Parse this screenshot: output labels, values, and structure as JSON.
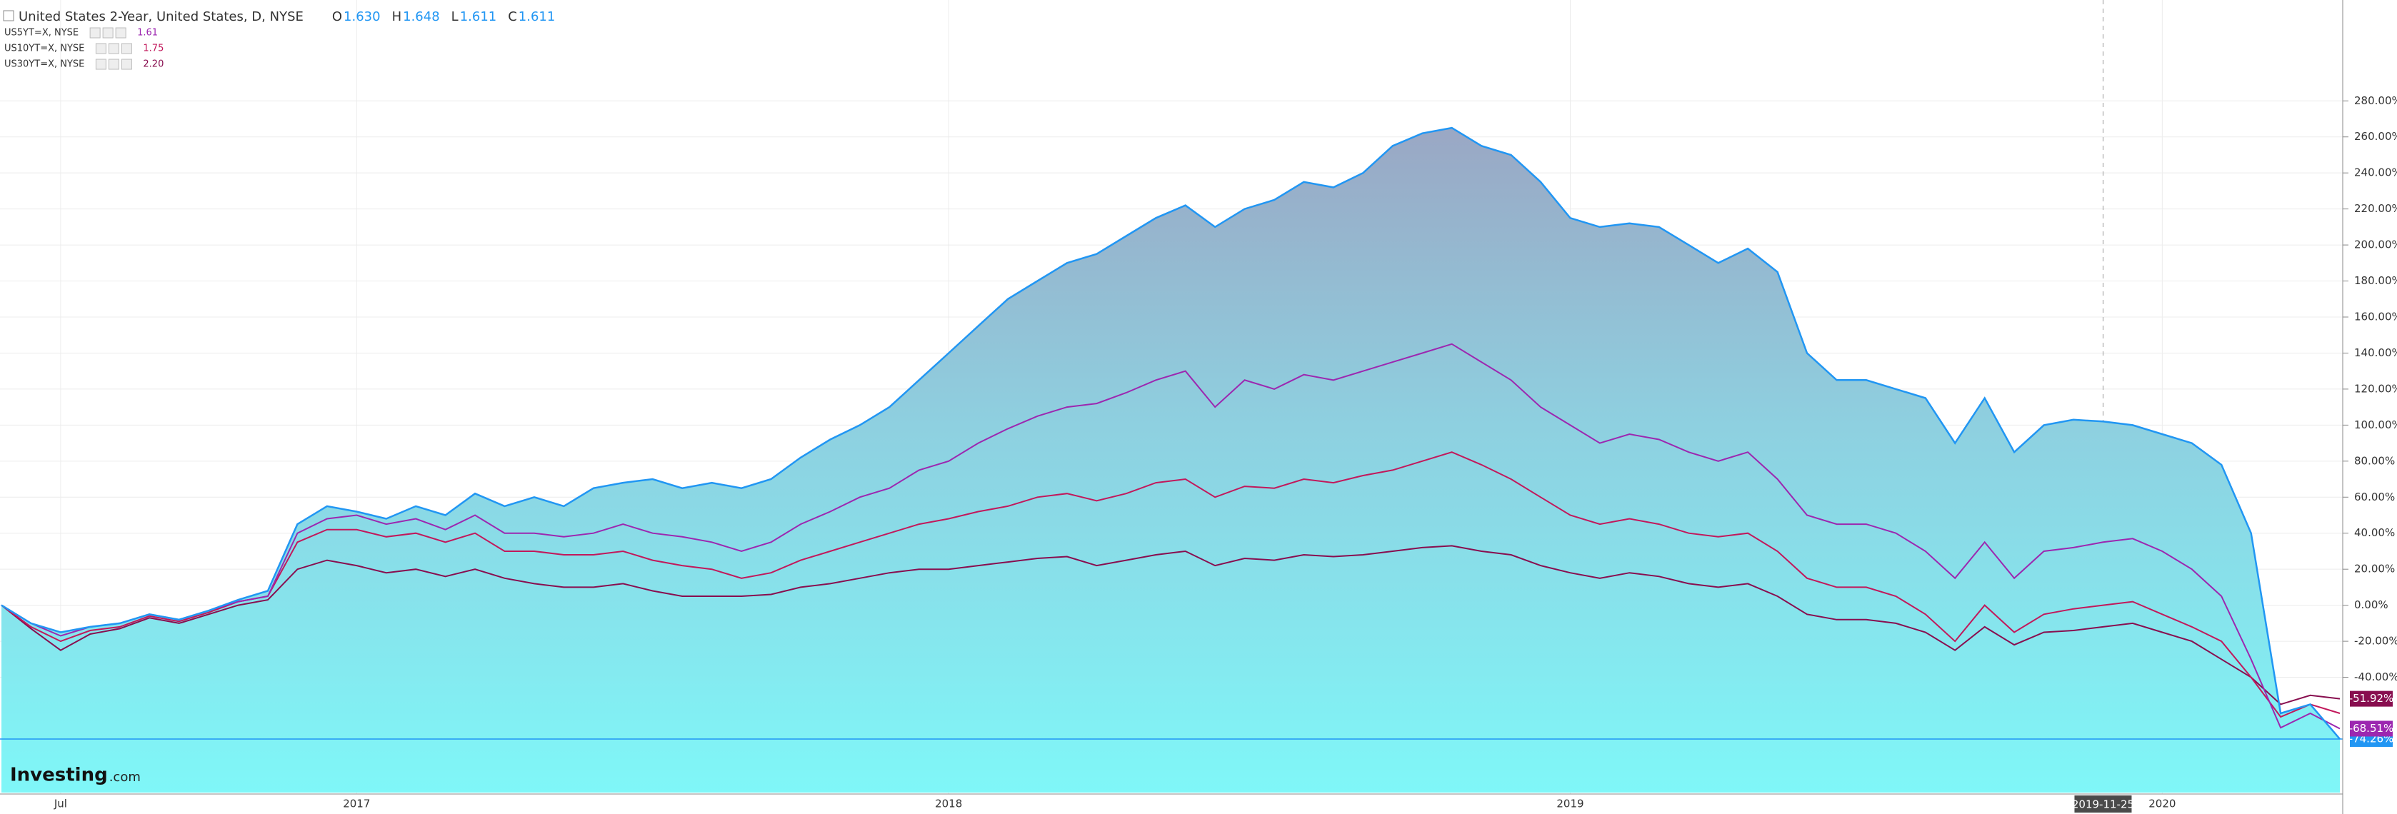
{
  "chart_data": {
    "type": "area-line",
    "title": "United States 2-Year, United States, D, NYSE",
    "ohlc": [
      {
        "label": "O",
        "value": "1.630"
      },
      {
        "label": "H",
        "value": "1.648"
      },
      {
        "label": "L",
        "value": "1.611"
      },
      {
        "label": "C",
        "value": "1.611"
      }
    ],
    "watermark": {
      "brand": "Investing",
      "suffix": ".com"
    },
    "categories": [
      null,
      null,
      "Jul",
      null,
      null,
      null,
      null,
      null,
      null,
      null,
      null,
      null,
      "2017",
      null,
      null,
      null,
      null,
      null,
      null,
      null,
      null,
      null,
      null,
      null,
      null,
      null,
      null,
      null,
      null,
      null,
      null,
      null,
      "2018",
      null,
      null,
      null,
      null,
      null,
      null,
      null,
      null,
      null,
      null,
      null,
      null,
      null,
      null,
      null,
      null,
      null,
      null,
      null,
      null,
      "2019",
      null,
      null,
      null,
      null,
      null,
      null,
      null,
      null,
      null,
      null,
      null,
      null,
      null,
      null,
      null,
      null,
      null,
      "2019-11-25",
      null,
      "2020",
      null,
      null,
      null,
      null,
      null,
      null
    ],
    "ylim": [
      -104,
      336
    ],
    "yticks": [
      {
        "value": -40,
        "label": "-40.00%"
      },
      {
        "value": -20,
        "label": "-20.00%"
      },
      {
        "value": 0,
        "label": "0.00%"
      },
      {
        "value": 20,
        "label": "20.00%"
      },
      {
        "value": 40,
        "label": "40.00%"
      },
      {
        "value": 60,
        "label": "60.00%"
      },
      {
        "value": 80,
        "label": "80.00%"
      },
      {
        "value": 100,
        "label": "100.00%"
      },
      {
        "value": 120,
        "label": "120.00%"
      },
      {
        "value": 140,
        "label": "140.00%"
      },
      {
        "value": 160,
        "label": "160.00%"
      },
      {
        "value": 180,
        "label": "180.00%"
      },
      {
        "value": 200,
        "label": "200.00%"
      },
      {
        "value": 220,
        "label": "220.00%"
      },
      {
        "value": 240,
        "label": "240.00%"
      },
      {
        "value": 260,
        "label": "260.00%"
      },
      {
        "value": 280,
        "label": "280.00%"
      }
    ],
    "grid": true,
    "series": [
      {
        "name": "United States 2-Year",
        "color": "#2196f3",
        "area": true,
        "end_label": "-74.26%",
        "values": [
          0,
          -10,
          -15,
          -12,
          -10,
          -5,
          -8,
          -3,
          3,
          8,
          45,
          55,
          52,
          48,
          55,
          50,
          62,
          55,
          60,
          55,
          65,
          68,
          70,
          65,
          68,
          65,
          70,
          82,
          92,
          100,
          110,
          125,
          140,
          155,
          170,
          180,
          190,
          195,
          205,
          215,
          222,
          210,
          220,
          225,
          235,
          232,
          240,
          255,
          262,
          265,
          255,
          250,
          235,
          215,
          210,
          212,
          210,
          200,
          190,
          198,
          185,
          140,
          125,
          125,
          120,
          115,
          90,
          115,
          85,
          100,
          103,
          102,
          100,
          95,
          90,
          78,
          40,
          -60,
          -55,
          -74.26
        ]
      },
      {
        "name": "US5YT=X, NYSE",
        "color": "#9c27b0",
        "legend_value": "1.61",
        "end_label": "-68.51%",
        "values": [
          0,
          -10,
          -17,
          -12,
          -10,
          -5,
          -8,
          -3,
          2,
          5,
          40,
          48,
          50,
          45,
          48,
          42,
          50,
          40,
          40,
          38,
          40,
          45,
          40,
          38,
          35,
          30,
          35,
          45,
          52,
          60,
          65,
          75,
          80,
          90,
          98,
          105,
          110,
          112,
          118,
          125,
          130,
          110,
          125,
          120,
          128,
          125,
          130,
          135,
          140,
          145,
          135,
          125,
          110,
          100,
          90,
          95,
          92,
          85,
          80,
          85,
          70,
          50,
          45,
          45,
          40,
          30,
          15,
          35,
          15,
          30,
          32,
          35,
          37,
          30,
          20,
          5,
          -30,
          -68,
          -60,
          -68.51
        ]
      },
      {
        "name": "US10YT=X, NYSE",
        "color": "#c2185b",
        "legend_value": "1.75",
        "values": [
          0,
          -12,
          -20,
          -14,
          -12,
          -6,
          -9,
          -4,
          2,
          5,
          35,
          42,
          42,
          38,
          40,
          35,
          40,
          30,
          30,
          28,
          28,
          30,
          25,
          22,
          20,
          15,
          18,
          25,
          30,
          35,
          40,
          45,
          48,
          52,
          55,
          60,
          62,
          58,
          62,
          68,
          70,
          60,
          66,
          65,
          70,
          68,
          72,
          75,
          80,
          85,
          78,
          70,
          60,
          50,
          45,
          48,
          45,
          40,
          38,
          40,
          30,
          15,
          10,
          10,
          5,
          -5,
          -20,
          0,
          -15,
          -5,
          -2,
          0,
          2,
          -5,
          -12,
          -20,
          -40,
          -62,
          -55,
          -60
        ]
      },
      {
        "name": "US30YT=X, NYSE",
        "color": "#880e4f",
        "legend_value": "2.20",
        "end_label": "-51.92%",
        "values": [
          0,
          -13,
          -25,
          -16,
          -13,
          -7,
          -10,
          -5,
          0,
          3,
          20,
          25,
          22,
          18,
          20,
          16,
          20,
          15,
          12,
          10,
          10,
          12,
          8,
          5,
          5,
          5,
          6,
          10,
          12,
          15,
          18,
          20,
          20,
          22,
          24,
          26,
          27,
          22,
          25,
          28,
          30,
          22,
          26,
          25,
          28,
          27,
          28,
          30,
          32,
          33,
          30,
          28,
          22,
          18,
          15,
          18,
          16,
          12,
          10,
          12,
          5,
          -5,
          -8,
          -8,
          -10,
          -15,
          -25,
          -12,
          -22,
          -15,
          -14,
          -12,
          -10,
          -15,
          -20,
          -30,
          -40,
          -55,
          -50,
          -51.92
        ]
      }
    ]
  }
}
